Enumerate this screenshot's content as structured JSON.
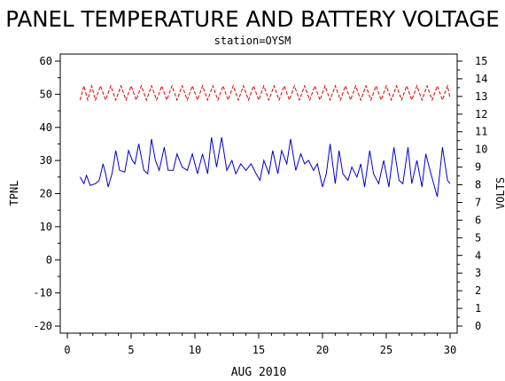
{
  "chart_data": {
    "type": "line",
    "title": "PANEL TEMPERATURE AND BATTERY VOLTAGE",
    "subtitle": "station=OYSM",
    "xlabel": "AUG 2010",
    "ylabel_left": "TPNL",
    "ylabel_right": "VOLTS",
    "xlim": [
      0,
      30
    ],
    "ylim_left": [
      -20,
      60
    ],
    "ylim_right": [
      0,
      15
    ],
    "x_ticks": [
      0,
      5,
      10,
      15,
      20,
      25,
      30
    ],
    "y_left_ticks": [
      -20,
      -10,
      0,
      10,
      20,
      30,
      40,
      50,
      60
    ],
    "y_right_ticks": [
      0,
      1,
      2,
      3,
      4,
      5,
      6,
      7,
      8,
      9,
      10,
      11,
      12,
      13,
      14,
      15
    ],
    "grid": false,
    "series": [
      {
        "axis": "left",
        "color": "#0000cc",
        "style": "solid",
        "points": [
          [
            1.0,
            25
          ],
          [
            1.3,
            23
          ],
          [
            1.5,
            25.5
          ],
          [
            1.8,
            22.5
          ],
          [
            2.2,
            23
          ],
          [
            2.5,
            24
          ],
          [
            2.8,
            29
          ],
          [
            3.0,
            26
          ],
          [
            3.2,
            22
          ],
          [
            3.5,
            26
          ],
          [
            3.8,
            33
          ],
          [
            4.1,
            27
          ],
          [
            4.5,
            26.5
          ],
          [
            4.8,
            33
          ],
          [
            5.1,
            30
          ],
          [
            5.3,
            29
          ],
          [
            5.6,
            35
          ],
          [
            6.0,
            27
          ],
          [
            6.3,
            26
          ],
          [
            6.6,
            36.5
          ],
          [
            6.9,
            30
          ],
          [
            7.2,
            27
          ],
          [
            7.6,
            34
          ],
          [
            7.9,
            27
          ],
          [
            8.3,
            27
          ],
          [
            8.6,
            32
          ],
          [
            9.0,
            28
          ],
          [
            9.4,
            27
          ],
          [
            9.8,
            32
          ],
          [
            10.2,
            26
          ],
          [
            10.6,
            32
          ],
          [
            11.0,
            26
          ],
          [
            11.3,
            37
          ],
          [
            11.7,
            28
          ],
          [
            12.1,
            37
          ],
          [
            12.5,
            27
          ],
          [
            12.9,
            30
          ],
          [
            13.2,
            26
          ],
          [
            13.6,
            29
          ],
          [
            14.0,
            27
          ],
          [
            14.4,
            29
          ],
          [
            14.8,
            26
          ],
          [
            15.1,
            24
          ],
          [
            15.4,
            30
          ],
          [
            15.8,
            26
          ],
          [
            16.1,
            33
          ],
          [
            16.5,
            26
          ],
          [
            16.8,
            33
          ],
          [
            17.2,
            29
          ],
          [
            17.5,
            36.5
          ],
          [
            17.9,
            27
          ],
          [
            18.3,
            32
          ],
          [
            18.6,
            29
          ],
          [
            18.9,
            30
          ],
          [
            19.3,
            27
          ],
          [
            19.6,
            29
          ],
          [
            20.0,
            22
          ],
          [
            20.3,
            26
          ],
          [
            20.6,
            35
          ],
          [
            21.0,
            23
          ],
          [
            21.3,
            33
          ],
          [
            21.6,
            26
          ],
          [
            22.0,
            24
          ],
          [
            22.3,
            28
          ],
          [
            22.7,
            25
          ],
          [
            23.0,
            29
          ],
          [
            23.3,
            22
          ],
          [
            23.7,
            33
          ],
          [
            24.0,
            26
          ],
          [
            24.4,
            23
          ],
          [
            24.8,
            30
          ],
          [
            25.2,
            22
          ],
          [
            25.6,
            34
          ],
          [
            26.0,
            24
          ],
          [
            26.3,
            23
          ],
          [
            26.7,
            34
          ],
          [
            27.0,
            23
          ],
          [
            27.4,
            30
          ],
          [
            27.8,
            22
          ],
          [
            28.1,
            32
          ],
          [
            28.5,
            26
          ],
          [
            29.0,
            19
          ],
          [
            29.4,
            34
          ],
          [
            29.8,
            24
          ],
          [
            30.0,
            23
          ]
        ]
      },
      {
        "axis": "right",
        "color": "#dd0000",
        "style": "dashed",
        "points": [
          [
            1.0,
            12.8
          ],
          [
            1.3,
            13.6
          ],
          [
            1.6,
            12.8
          ],
          [
            1.9,
            13.6
          ],
          [
            2.2,
            12.8
          ],
          [
            2.6,
            13.6
          ],
          [
            3.0,
            12.8
          ],
          [
            3.4,
            13.6
          ],
          [
            3.8,
            12.8
          ],
          [
            4.2,
            13.6
          ],
          [
            4.6,
            12.8
          ],
          [
            5.0,
            13.6
          ],
          [
            5.4,
            12.8
          ],
          [
            5.8,
            13.6
          ],
          [
            6.2,
            12.8
          ],
          [
            6.6,
            13.6
          ],
          [
            7.0,
            12.8
          ],
          [
            7.4,
            13.6
          ],
          [
            7.8,
            12.8
          ],
          [
            8.2,
            13.6
          ],
          [
            8.6,
            12.8
          ],
          [
            9.0,
            13.6
          ],
          [
            9.4,
            12.8
          ],
          [
            9.8,
            13.6
          ],
          [
            10.2,
            12.8
          ],
          [
            10.6,
            13.6
          ],
          [
            11.0,
            12.8
          ],
          [
            11.4,
            13.6
          ],
          [
            11.8,
            12.8
          ],
          [
            12.2,
            13.6
          ],
          [
            12.6,
            12.8
          ],
          [
            13.0,
            13.6
          ],
          [
            13.4,
            12.8
          ],
          [
            13.8,
            13.6
          ],
          [
            14.2,
            12.8
          ],
          [
            14.6,
            13.6
          ],
          [
            15.0,
            12.8
          ],
          [
            15.4,
            13.6
          ],
          [
            15.8,
            12.8
          ],
          [
            16.2,
            13.6
          ],
          [
            16.6,
            12.8
          ],
          [
            17.0,
            13.6
          ],
          [
            17.4,
            12.8
          ],
          [
            17.8,
            13.6
          ],
          [
            18.2,
            12.8
          ],
          [
            18.6,
            13.6
          ],
          [
            19.0,
            12.8
          ],
          [
            19.4,
            13.6
          ],
          [
            19.8,
            12.8
          ],
          [
            20.2,
            13.6
          ],
          [
            20.6,
            12.8
          ],
          [
            21.0,
            13.6
          ],
          [
            21.4,
            12.8
          ],
          [
            21.8,
            13.6
          ],
          [
            22.2,
            12.8
          ],
          [
            22.6,
            13.6
          ],
          [
            23.0,
            12.8
          ],
          [
            23.4,
            13.6
          ],
          [
            23.8,
            12.8
          ],
          [
            24.2,
            13.6
          ],
          [
            24.6,
            12.8
          ],
          [
            25.0,
            13.6
          ],
          [
            25.4,
            12.8
          ],
          [
            25.8,
            13.6
          ],
          [
            26.2,
            12.8
          ],
          [
            26.6,
            13.6
          ],
          [
            27.0,
            12.8
          ],
          [
            27.4,
            13.6
          ],
          [
            27.8,
            12.8
          ],
          [
            28.2,
            13.6
          ],
          [
            28.6,
            12.8
          ],
          [
            29.0,
            13.6
          ],
          [
            29.4,
            12.8
          ],
          [
            29.8,
            13.6
          ],
          [
            30.0,
            12.9
          ]
        ]
      }
    ]
  }
}
